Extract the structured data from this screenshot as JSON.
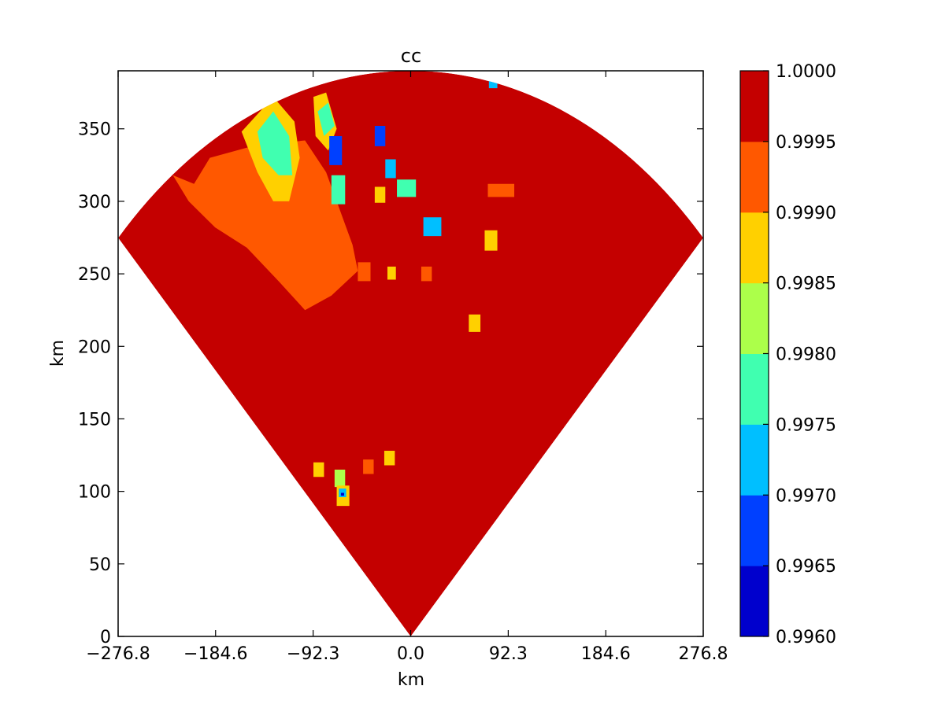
{
  "chart_data": {
    "type": "heatmap",
    "title": "cc",
    "xlabel": "km",
    "ylabel": "km",
    "xlim": [
      -276.8,
      276.8
    ],
    "ylim": [
      0,
      390
    ],
    "xticks": [
      -276.8,
      -184.6,
      -92.3,
      0.0,
      92.3,
      184.6,
      276.8
    ],
    "xtick_labels": [
      "−276.8",
      "−184.6",
      "−92.3",
      "0.0",
      "92.3",
      "184.6",
      "276.8"
    ],
    "yticks": [
      0,
      50,
      100,
      150,
      200,
      250,
      300,
      350
    ],
    "ytick_labels": [
      "0",
      "50",
      "100",
      "150",
      "200",
      "250",
      "300",
      "350"
    ],
    "sector": {
      "radius_km": 390,
      "half_angle_deg": 45.2
    },
    "colorbar": {
      "levels": [
        0.996,
        0.9965,
        0.997,
        0.9975,
        0.998,
        0.9985,
        0.999,
        0.9995,
        1.0
      ],
      "level_labels": [
        "0.9960",
        "0.9965",
        "0.9970",
        "0.9975",
        "0.9980",
        "0.9985",
        "0.9990",
        "0.9995",
        "1.0000"
      ],
      "colors": [
        "#0000cd",
        "#0040ff",
        "#00bfff",
        "#40ffb0",
        "#acff4a",
        "#ffd000",
        "#ff5800",
        "#c40000"
      ]
    },
    "background_value": 0.9998,
    "regions": [
      {
        "value": 0.9993,
        "points": [
          [
            -205,
            312
          ],
          [
            -190,
            330
          ],
          [
            -150,
            338
          ],
          [
            -100,
            342
          ],
          [
            -80,
            320
          ],
          [
            -70,
            300
          ],
          [
            -55,
            270
          ],
          [
            -50,
            252
          ],
          [
            -75,
            235
          ],
          [
            -100,
            225
          ],
          [
            -125,
            245
          ],
          [
            -155,
            268
          ],
          [
            -185,
            282
          ],
          [
            -210,
            300
          ],
          [
            -225,
            318
          ]
        ]
      },
      {
        "value": 0.9988,
        "points": [
          [
            -160,
            348
          ],
          [
            -130,
            372
          ],
          [
            -110,
            355
          ],
          [
            -105,
            330
          ],
          [
            -115,
            300
          ],
          [
            -130,
            300
          ],
          [
            -145,
            320
          ]
        ]
      },
      {
        "value": 0.9978,
        "points": [
          [
            -145,
            348
          ],
          [
            -130,
            362
          ],
          [
            -115,
            345
          ],
          [
            -112,
            318
          ],
          [
            -125,
            318
          ],
          [
            -140,
            330
          ]
        ]
      },
      {
        "value": 0.9988,
        "points": [
          [
            -92,
            372
          ],
          [
            -80,
            375
          ],
          [
            -70,
            350
          ],
          [
            -78,
            335
          ],
          [
            -90,
            345
          ]
        ]
      },
      {
        "value": 0.9978,
        "points": [
          [
            -88,
            362
          ],
          [
            -78,
            368
          ],
          [
            -72,
            352
          ],
          [
            -82,
            345
          ]
        ]
      },
      {
        "value": 0.9968,
        "points": [
          [
            -77,
            345
          ],
          [
            -65,
            345
          ],
          [
            -65,
            325
          ],
          [
            -77,
            325
          ]
        ]
      },
      {
        "value": 0.9978,
        "points": [
          [
            -75,
            318
          ],
          [
            -62,
            318
          ],
          [
            -62,
            298
          ],
          [
            -75,
            298
          ]
        ]
      },
      {
        "value": 0.9968,
        "points": [
          [
            -34,
            352
          ],
          [
            -24,
            352
          ],
          [
            -24,
            338
          ],
          [
            -34,
            338
          ]
        ]
      },
      {
        "value": 0.9973,
        "points": [
          [
            -24,
            329
          ],
          [
            -14,
            329
          ],
          [
            -14,
            316
          ],
          [
            -24,
            316
          ]
        ]
      },
      {
        "value": 0.9978,
        "points": [
          [
            -13,
            315
          ],
          [
            5,
            315
          ],
          [
            5,
            303
          ],
          [
            -13,
            303
          ]
        ]
      },
      {
        "value": 0.9988,
        "points": [
          [
            -34,
            310
          ],
          [
            -24,
            310
          ],
          [
            -24,
            299
          ],
          [
            -34,
            299
          ]
        ]
      },
      {
        "value": 0.9973,
        "points": [
          [
            12,
            289
          ],
          [
            29,
            289
          ],
          [
            29,
            276
          ],
          [
            12,
            276
          ]
        ]
      },
      {
        "value": 0.9993,
        "points": [
          [
            73,
            312
          ],
          [
            98,
            312
          ],
          [
            98,
            303
          ],
          [
            73,
            303
          ]
        ]
      },
      {
        "value": 0.9988,
        "points": [
          [
            70,
            280
          ],
          [
            82,
            280
          ],
          [
            82,
            266
          ],
          [
            70,
            266
          ]
        ]
      },
      {
        "value": 0.9988,
        "points": [
          [
            55,
            222
          ],
          [
            66,
            222
          ],
          [
            66,
            210
          ],
          [
            55,
            210
          ]
        ]
      },
      {
        "value": 0.9988,
        "points": [
          [
            -25,
            128
          ],
          [
            -15,
            128
          ],
          [
            -15,
            118
          ],
          [
            -25,
            118
          ]
        ]
      },
      {
        "value": 0.9993,
        "points": [
          [
            -45,
            122
          ],
          [
            -35,
            122
          ],
          [
            -35,
            112
          ],
          [
            -45,
            112
          ]
        ]
      },
      {
        "value": 0.9988,
        "points": [
          [
            -92,
            120
          ],
          [
            -82,
            120
          ],
          [
            -82,
            110
          ],
          [
            -92,
            110
          ]
        ]
      },
      {
        "value": 0.9983,
        "points": [
          [
            -72,
            115
          ],
          [
            -62,
            115
          ],
          [
            -62,
            103
          ],
          [
            -72,
            103
          ]
        ]
      },
      {
        "value": 0.9988,
        "points": [
          [
            -70,
            104
          ],
          [
            -58,
            104
          ],
          [
            -58,
            90
          ],
          [
            -70,
            90
          ]
        ]
      },
      {
        "value": 0.9973,
        "points": [
          [
            -68,
            102
          ],
          [
            -61,
            102
          ],
          [
            -61,
            96
          ],
          [
            -68,
            96
          ]
        ]
      },
      {
        "value": 0.9963,
        "points": [
          [
            -66,
            99
          ],
          [
            -63,
            99
          ],
          [
            -63,
            97
          ],
          [
            -66,
            97
          ]
        ]
      },
      {
        "value": 0.9993,
        "points": [
          [
            -50,
            258
          ],
          [
            -38,
            258
          ],
          [
            -38,
            245
          ],
          [
            -50,
            245
          ]
        ]
      },
      {
        "value": 0.9988,
        "points": [
          [
            -22,
            255
          ],
          [
            -14,
            255
          ],
          [
            -14,
            246
          ],
          [
            -22,
            246
          ]
        ]
      },
      {
        "value": 0.9993,
        "points": [
          [
            10,
            255
          ],
          [
            20,
            255
          ],
          [
            20,
            245
          ],
          [
            10,
            245
          ]
        ]
      },
      {
        "value": 0.9973,
        "points": [
          [
            74,
            385
          ],
          [
            82,
            385
          ],
          [
            82,
            378
          ],
          [
            74,
            378
          ]
        ]
      }
    ]
  }
}
